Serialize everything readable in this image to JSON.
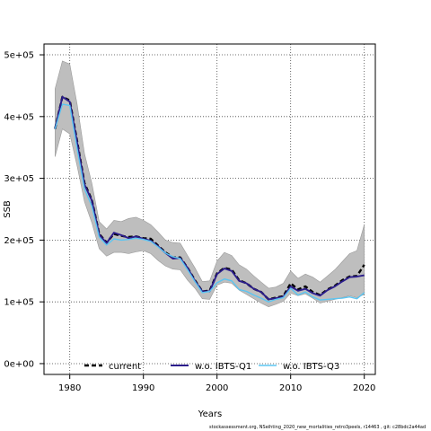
{
  "chart_data": {
    "type": "line",
    "xlabel": "Years",
    "ylabel": "SSB",
    "xlim": [
      1976.5,
      2021.5
    ],
    "ylim": [
      -17500,
      517500
    ],
    "x_ticks": [
      1980,
      1990,
      2000,
      2010,
      2020
    ],
    "x_tick_labels": [
      "1980",
      "1990",
      "2000",
      "2010",
      "2020"
    ],
    "y_ticks": [
      0,
      100000,
      200000,
      300000,
      400000,
      500000
    ],
    "y_tick_labels": [
      "0e+00",
      "1e+05",
      "2e+05",
      "3e+05",
      "4e+05",
      "5e+05"
    ],
    "grid": true,
    "legend_position": "bottom",
    "x": [
      1978,
      1979,
      1980,
      1981,
      1982,
      1983,
      1984,
      1985,
      1986,
      1987,
      1988,
      1989,
      1990,
      1991,
      1992,
      1993,
      1994,
      1995,
      1996,
      1997,
      1998,
      1999,
      2000,
      2001,
      2002,
      2003,
      2004,
      2005,
      2006,
      2007,
      2008,
      2009,
      2010,
      2011,
      2012,
      2013,
      2014,
      2015,
      2016,
      2017,
      2018,
      2019,
      2020
    ],
    "band": {
      "lower": [
        335000,
        380000,
        372000,
        320000,
        262000,
        228000,
        186000,
        174000,
        180000,
        180000,
        178000,
        181000,
        183000,
        178000,
        167000,
        158000,
        153000,
        152000,
        135000,
        122000,
        105000,
        104000,
        127000,
        132000,
        130000,
        119000,
        112000,
        105000,
        98000,
        92000,
        96000,
        101000,
        114000,
        110000,
        113000,
        106000,
        98000,
        101000,
        104000,
        107000,
        110000,
        107000,
        112000
      ],
      "upper": [
        445000,
        490000,
        485000,
        420000,
        340000,
        292000,
        230000,
        218000,
        232000,
        230000,
        235000,
        237000,
        232000,
        225000,
        213000,
        200000,
        196000,
        195000,
        175000,
        155000,
        133000,
        134000,
        166000,
        180000,
        175000,
        160000,
        153000,
        142000,
        132000,
        122000,
        124000,
        130000,
        150000,
        138000,
        145000,
        140000,
        132000,
        142000,
        152000,
        165000,
        178000,
        183000,
        225000
      ],
      "color": "#bebebe"
    },
    "series": [
      {
        "name": "current",
        "color": "#000000",
        "dash": "5,3",
        "values": [
          380000,
          432000,
          426000,
          360000,
          292000,
          265000,
          210000,
          196000,
          210000,
          207000,
          205000,
          206000,
          203000,
          202000,
          191000,
          180000,
          172000,
          172000,
          155000,
          135000,
          117000,
          118000,
          146000,
          155000,
          152000,
          135000,
          130000,
          121000,
          116000,
          104000,
          107000,
          109000,
          130000,
          120000,
          125000,
          116000,
          111000,
          120000,
          126000,
          135000,
          141000,
          142000,
          160000
        ]
      },
      {
        "name": "w.o. IBTS-Q1",
        "color": "#2b1d8c",
        "dash": "",
        "values": [
          380000,
          432000,
          424000,
          358000,
          290000,
          264000,
          209000,
          195000,
          212000,
          208000,
          203000,
          206000,
          202000,
          199000,
          190000,
          179000,
          170000,
          171000,
          155000,
          134000,
          117000,
          117000,
          145000,
          154000,
          150000,
          134000,
          130000,
          121000,
          116000,
          104000,
          106000,
          108000,
          125000,
          118000,
          121000,
          114000,
          110000,
          119000,
          125000,
          133000,
          140000,
          141000,
          143000
        ]
      },
      {
        "name": "w.o. IBTS-Q3",
        "color": "#5bc5f2",
        "dash": "",
        "values": [
          380000,
          420000,
          418000,
          348000,
          283000,
          255000,
          205000,
          192000,
          202000,
          200000,
          201000,
          203000,
          201000,
          198000,
          189000,
          179000,
          173000,
          170000,
          152000,
          133000,
          115000,
          117000,
          131000,
          137000,
          134000,
          120000,
          117000,
          111000,
          106000,
          100000,
          104000,
          107000,
          122000,
          111000,
          116000,
          108000,
          103000,
          104000,
          105000,
          106000,
          108000,
          105000,
          115000
        ]
      }
    ]
  },
  "footnote": "stockassessment.org, NSeihting_2020_new_mortalities_retro3peels, r14463 , git: c28bdc2a44ad"
}
